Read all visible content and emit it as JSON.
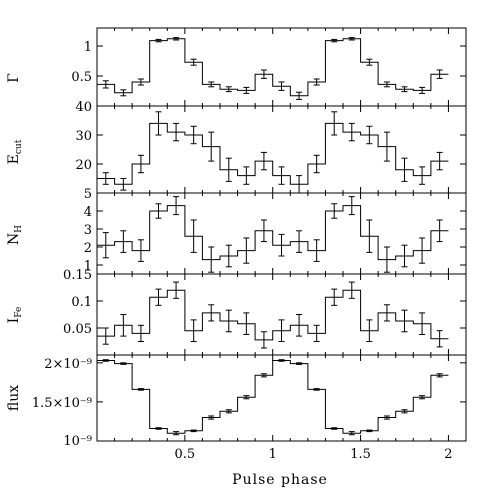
{
  "chart_data": [
    {
      "type": "line",
      "ylabel": "Γ",
      "ylim": [
        0,
        1.3
      ],
      "yticks": [
        {
          "v": 1,
          "label": "1"
        },
        {
          "v": 0.5,
          "label": "0.5"
        }
      ],
      "xlim": [
        0,
        2.1
      ],
      "bins": [
        [
          0.0,
          0.1,
          0.36,
          0.06
        ],
        [
          0.1,
          0.2,
          0.22,
          0.05
        ],
        [
          0.2,
          0.3,
          0.4,
          0.05
        ],
        [
          0.3,
          0.4,
          1.09,
          0.02
        ],
        [
          0.4,
          0.5,
          1.12,
          0.02
        ],
        [
          0.5,
          0.6,
          0.73,
          0.05
        ],
        [
          0.6,
          0.7,
          0.36,
          0.04
        ],
        [
          0.7,
          0.8,
          0.28,
          0.04
        ],
        [
          0.8,
          0.9,
          0.26,
          0.05
        ],
        [
          0.9,
          1.0,
          0.53,
          0.07
        ],
        [
          1.0,
          1.1,
          0.33,
          0.07
        ],
        [
          1.1,
          1.2,
          0.17,
          0.06
        ],
        [
          1.2,
          1.3,
          0.4,
          0.05
        ],
        [
          1.3,
          1.4,
          1.09,
          0.02
        ],
        [
          1.4,
          1.5,
          1.12,
          0.02
        ],
        [
          1.5,
          1.6,
          0.73,
          0.05
        ],
        [
          1.6,
          1.7,
          0.36,
          0.04
        ],
        [
          1.7,
          1.8,
          0.28,
          0.04
        ],
        [
          1.8,
          1.9,
          0.26,
          0.05
        ],
        [
          1.9,
          2.0,
          0.53,
          0.07
        ]
      ]
    },
    {
      "type": "line",
      "ylabel": "E_cut",
      "ylim": [
        10,
        40
      ],
      "yticks": [
        {
          "v": 40,
          "label": "40"
        },
        {
          "v": 30,
          "label": "30"
        },
        {
          "v": 20,
          "label": "20"
        }
      ],
      "xlim": [
        0,
        2.1
      ],
      "bins": [
        [
          0.0,
          0.1,
          15,
          2
        ],
        [
          0.1,
          0.2,
          13,
          2
        ],
        [
          0.2,
          0.3,
          20,
          3
        ],
        [
          0.3,
          0.4,
          34,
          4
        ],
        [
          0.4,
          0.5,
          31,
          3
        ],
        [
          0.5,
          0.6,
          30,
          3
        ],
        [
          0.6,
          0.7,
          26,
          5
        ],
        [
          0.7,
          0.8,
          18,
          4
        ],
        [
          0.8,
          0.9,
          16,
          3
        ],
        [
          0.9,
          1.0,
          21,
          3
        ],
        [
          1.0,
          1.1,
          16,
          3
        ],
        [
          1.1,
          1.2,
          13,
          3
        ],
        [
          1.2,
          1.3,
          20,
          3
        ],
        [
          1.3,
          1.4,
          34,
          4
        ],
        [
          1.4,
          1.5,
          31,
          3
        ],
        [
          1.5,
          1.6,
          30,
          3
        ],
        [
          1.6,
          1.7,
          26,
          5
        ],
        [
          1.7,
          1.8,
          18,
          4
        ],
        [
          1.8,
          1.9,
          16,
          3
        ],
        [
          1.9,
          2.0,
          21,
          3
        ]
      ]
    },
    {
      "type": "line",
      "ylabel": "N_H",
      "ylim": [
        0.5,
        5
      ],
      "yticks": [
        {
          "v": 5,
          "label": "5"
        },
        {
          "v": 4,
          "label": "4"
        },
        {
          "v": 3,
          "label": "3"
        },
        {
          "v": 2,
          "label": "2"
        },
        {
          "v": 1,
          "label": "1"
        }
      ],
      "xlim": [
        0,
        2.1
      ],
      "bins": [
        [
          0.0,
          0.1,
          2.1,
          0.7
        ],
        [
          0.1,
          0.2,
          2.3,
          0.6
        ],
        [
          0.2,
          0.3,
          1.8,
          0.6
        ],
        [
          0.3,
          0.4,
          4.0,
          0.4
        ],
        [
          0.4,
          0.5,
          4.3,
          0.5
        ],
        [
          0.5,
          0.6,
          2.6,
          0.9
        ],
        [
          0.6,
          0.7,
          1.3,
          0.7
        ],
        [
          0.7,
          0.8,
          1.5,
          0.6
        ],
        [
          0.8,
          0.9,
          1.8,
          0.7
        ],
        [
          0.9,
          1.0,
          2.9,
          0.6
        ],
        [
          1.0,
          1.1,
          2.1,
          0.6
        ],
        [
          1.1,
          1.2,
          2.3,
          0.6
        ],
        [
          1.2,
          1.3,
          1.8,
          0.6
        ],
        [
          1.3,
          1.4,
          4.0,
          0.4
        ],
        [
          1.4,
          1.5,
          4.3,
          0.5
        ],
        [
          1.5,
          1.6,
          2.6,
          0.9
        ],
        [
          1.6,
          1.7,
          1.3,
          0.7
        ],
        [
          1.7,
          1.8,
          1.5,
          0.6
        ],
        [
          1.8,
          1.9,
          1.8,
          0.7
        ],
        [
          1.9,
          2.0,
          2.9,
          0.6
        ]
      ]
    },
    {
      "type": "line",
      "ylabel": "I_Fe",
      "ylim": [
        0,
        0.15
      ],
      "yticks": [
        {
          "v": 0.15,
          "label": "0.15"
        },
        {
          "v": 0.1,
          "label": "0.1"
        },
        {
          "v": 0.05,
          "label": "0.05"
        }
      ],
      "xlim": [
        0,
        2.1
      ],
      "bins": [
        [
          0.0,
          0.1,
          0.035,
          0.015
        ],
        [
          0.1,
          0.2,
          0.055,
          0.02
        ],
        [
          0.2,
          0.3,
          0.04,
          0.015
        ],
        [
          0.3,
          0.4,
          0.107,
          0.015
        ],
        [
          0.4,
          0.5,
          0.12,
          0.015
        ],
        [
          0.5,
          0.6,
          0.045,
          0.02
        ],
        [
          0.6,
          0.7,
          0.078,
          0.015
        ],
        [
          0.7,
          0.8,
          0.063,
          0.02
        ],
        [
          0.8,
          0.9,
          0.058,
          0.02
        ],
        [
          0.9,
          1.0,
          0.028,
          0.015
        ],
        [
          1.0,
          1.1,
          0.045,
          0.02
        ],
        [
          1.1,
          1.2,
          0.055,
          0.02
        ],
        [
          1.2,
          1.3,
          0.04,
          0.015
        ],
        [
          1.3,
          1.4,
          0.107,
          0.015
        ],
        [
          1.4,
          1.5,
          0.12,
          0.015
        ],
        [
          1.5,
          1.6,
          0.045,
          0.02
        ],
        [
          1.6,
          1.7,
          0.078,
          0.015
        ],
        [
          1.7,
          1.8,
          0.063,
          0.02
        ],
        [
          1.8,
          1.9,
          0.058,
          0.02
        ],
        [
          1.9,
          2.0,
          0.03,
          0.015
        ]
      ]
    },
    {
      "type": "line",
      "ylabel": "flux",
      "ylim": [
        1e-09,
        2.1e-09
      ],
      "yticks": [
        {
          "v": 2e-09,
          "label": "2×10⁻⁹"
        },
        {
          "v": 1.5e-09,
          "label": "1.5×10⁻⁹"
        },
        {
          "v": 1e-09,
          "label": "10⁻⁹"
        }
      ],
      "xlim": [
        0,
        2.1
      ],
      "xticks": [
        {
          "v": 0.5,
          "label": "0.5"
        },
        {
          "v": 1,
          "label": "1"
        },
        {
          "v": 1.5,
          "label": "1.5"
        },
        {
          "v": 2,
          "label": "2"
        }
      ],
      "xlabel": "Pulse phase",
      "bins": [
        [
          0.0,
          0.1,
          2.03e-09,
          1e-11
        ],
        [
          0.1,
          0.2,
          1.99e-09,
          1e-11
        ],
        [
          0.2,
          0.3,
          1.66e-09,
          1e-11
        ],
        [
          0.3,
          0.4,
          1.16e-09,
          1e-11
        ],
        [
          0.4,
          0.5,
          1.1e-09,
          2e-11
        ],
        [
          0.5,
          0.6,
          1.13e-09,
          1e-11
        ],
        [
          0.6,
          0.7,
          1.3e-09,
          2e-11
        ],
        [
          0.7,
          0.8,
          1.38e-09,
          2e-11
        ],
        [
          0.8,
          0.9,
          1.56e-09,
          2e-11
        ],
        [
          0.9,
          1.0,
          1.84e-09,
          2e-11
        ],
        [
          1.0,
          1.1,
          2.03e-09,
          1e-11
        ],
        [
          1.1,
          1.2,
          1.99e-09,
          1e-11
        ],
        [
          1.2,
          1.3,
          1.66e-09,
          1e-11
        ],
        [
          1.3,
          1.4,
          1.16e-09,
          1e-11
        ],
        [
          1.4,
          1.5,
          1.1e-09,
          2e-11
        ],
        [
          1.5,
          1.6,
          1.13e-09,
          1e-11
        ],
        [
          1.6,
          1.7,
          1.3e-09,
          2e-11
        ],
        [
          1.7,
          1.8,
          1.38e-09,
          2e-11
        ],
        [
          1.8,
          1.9,
          1.56e-09,
          2e-11
        ],
        [
          1.9,
          2.0,
          1.84e-09,
          2e-11
        ]
      ]
    }
  ]
}
